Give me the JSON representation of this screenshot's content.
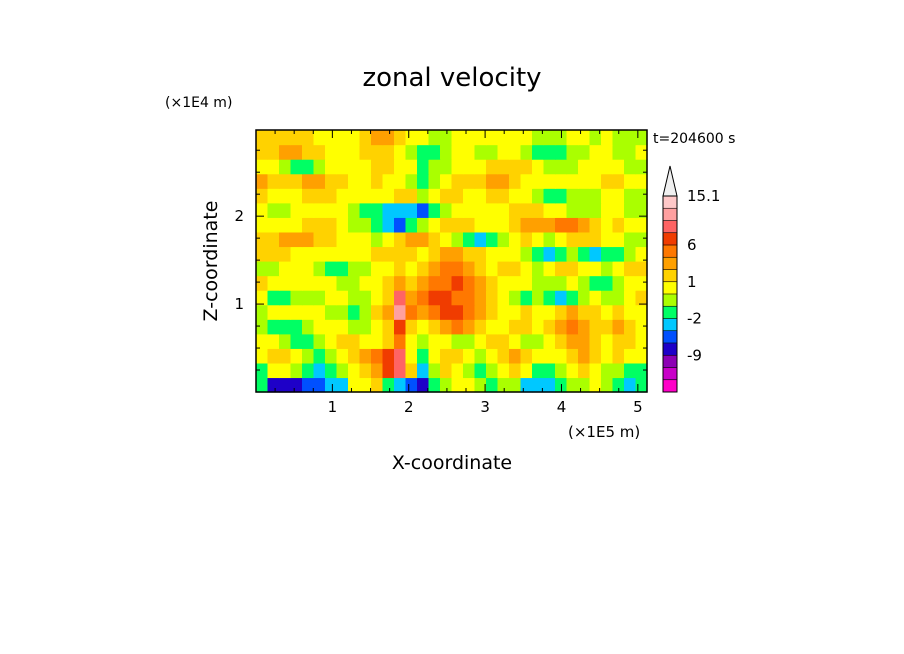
{
  "chart_data": {
    "type": "heatmap",
    "title": "zonal velocity",
    "xlabel": "X-coordinate",
    "ylabel": "Z-coordinate",
    "x_scale_label": "(×1E5 m)",
    "y_scale_label": "(×1E4 m)",
    "time_label": "t=204600 s",
    "xlim": [
      0.0,
      5.12
    ],
    "ylim": [
      0.0,
      2.98
    ],
    "x_ticks": [
      {
        "value": 1,
        "label": "1"
      },
      {
        "value": 2,
        "label": "2"
      },
      {
        "value": 3,
        "label": "3"
      },
      {
        "value": 4,
        "label": "4"
      },
      {
        "value": 5,
        "label": "5"
      }
    ],
    "y_ticks": [
      {
        "value": 1,
        "label": "1"
      },
      {
        "value": 2,
        "label": "2"
      }
    ],
    "colorbar": {
      "colors": [
        "#ff00c8",
        "#c800c8",
        "#8c00b4",
        "#1e00c8",
        "#0050ff",
        "#00c8ff",
        "#00ff64",
        "#aaff00",
        "#ffff00",
        "#ffd200",
        "#ffa000",
        "#ff7800",
        "#f03c00",
        "#ff6464",
        "#ffa0a0",
        "#ffc8c8",
        "#f0f0f0"
      ],
      "labels": [
        {
          "value": "15.1",
          "level": 16
        },
        {
          "value": "6",
          "level": 12
        },
        {
          "value": "1",
          "level": 9
        },
        {
          "value": "-2",
          "level": 6
        },
        {
          "value": "-9",
          "level": 3
        }
      ]
    },
    "field_grid_note": "coarse sampled velocity field, rows from bottom (z=0) to top, columns x from 0 to 5.12",
    "field": [
      [
        6,
        3,
        3,
        3,
        4,
        4,
        5,
        5,
        8,
        8,
        9,
        6,
        5,
        4,
        3,
        6,
        7,
        8,
        8,
        7,
        6,
        7,
        7,
        5,
        5,
        5,
        6,
        7,
        7,
        8,
        7,
        6,
        5,
        6
      ],
      [
        6,
        8,
        8,
        7,
        6,
        5,
        6,
        7,
        8,
        9,
        10,
        12,
        13,
        9,
        5,
        7,
        9,
        8,
        7,
        6,
        7,
        8,
        9,
        8,
        6,
        6,
        7,
        8,
        9,
        8,
        7,
        7,
        6,
        6
      ],
      [
        8,
        9,
        9,
        8,
        7,
        6,
        7,
        8,
        9,
        10,
        11,
        12,
        13,
        8,
        6,
        8,
        9,
        9,
        8,
        7,
        8,
        9,
        10,
        9,
        8,
        8,
        8,
        9,
        10,
        9,
        8,
        9,
        8,
        8
      ],
      [
        8,
        8,
        7,
        6,
        6,
        7,
        8,
        9,
        9,
        8,
        8,
        9,
        11,
        8,
        7,
        8,
        8,
        7,
        7,
        8,
        9,
        9,
        8,
        7,
        7,
        8,
        9,
        10,
        10,
        9,
        8,
        9,
        9,
        8
      ],
      [
        7,
        6,
        6,
        6,
        7,
        8,
        8,
        8,
        7,
        7,
        8,
        9,
        12,
        9,
        8,
        9,
        10,
        11,
        10,
        9,
        8,
        8,
        9,
        9,
        8,
        9,
        10,
        11,
        10,
        9,
        9,
        10,
        9,
        8
      ],
      [
        7,
        8,
        8,
        8,
        8,
        8,
        7,
        7,
        6,
        7,
        9,
        10,
        14,
        11,
        10,
        11,
        12,
        12,
        11,
        10,
        9,
        8,
        8,
        9,
        8,
        8,
        9,
        10,
        9,
        9,
        8,
        9,
        8,
        8
      ],
      [
        8,
        6,
        6,
        7,
        7,
        7,
        8,
        8,
        7,
        7,
        8,
        9,
        13,
        10,
        11,
        12,
        12,
        11,
        11,
        10,
        9,
        8,
        7,
        6,
        7,
        6,
        5,
        6,
        7,
        8,
        7,
        7,
        8,
        9
      ],
      [
        9,
        8,
        8,
        8,
        8,
        8,
        8,
        7,
        7,
        8,
        8,
        9,
        10,
        9,
        10,
        11,
        11,
        12,
        11,
        10,
        9,
        8,
        8,
        8,
        7,
        7,
        7,
        8,
        7,
        6,
        6,
        7,
        8,
        8
      ],
      [
        7,
        7,
        8,
        8,
        8,
        7,
        6,
        6,
        7,
        7,
        8,
        8,
        9,
        8,
        9,
        10,
        11,
        11,
        10,
        9,
        8,
        9,
        9,
        8,
        7,
        8,
        9,
        9,
        8,
        8,
        7,
        8,
        9,
        9
      ],
      [
        9,
        9,
        9,
        8,
        8,
        8,
        8,
        8,
        8,
        8,
        9,
        9,
        9,
        9,
        8,
        9,
        10,
        10,
        9,
        9,
        8,
        8,
        8,
        7,
        6,
        5,
        6,
        7,
        6,
        5,
        6,
        6,
        7,
        8
      ],
      [
        9,
        9,
        10,
        10,
        10,
        9,
        9,
        8,
        8,
        8,
        7,
        8,
        9,
        10,
        10,
        9,
        8,
        7,
        6,
        5,
        6,
        7,
        8,
        9,
        8,
        7,
        8,
        9,
        9,
        9,
        8,
        8,
        7,
        7
      ],
      [
        8,
        8,
        8,
        8,
        9,
        9,
        9,
        8,
        7,
        7,
        6,
        5,
        4,
        6,
        7,
        8,
        9,
        9,
        9,
        8,
        8,
        8,
        9,
        10,
        10,
        10,
        11,
        11,
        10,
        9,
        8,
        9,
        8,
        8
      ],
      [
        8,
        7,
        7,
        8,
        8,
        8,
        8,
        8,
        7,
        6,
        6,
        5,
        5,
        5,
        4,
        6,
        7,
        8,
        8,
        8,
        8,
        8,
        9,
        9,
        9,
        8,
        8,
        7,
        7,
        7,
        8,
        8,
        7,
        7
      ],
      [
        9,
        8,
        8,
        8,
        9,
        9,
        9,
        8,
        8,
        8,
        8,
        8,
        9,
        9,
        7,
        8,
        9,
        9,
        8,
        8,
        9,
        9,
        8,
        8,
        7,
        6,
        6,
        7,
        7,
        7,
        8,
        8,
        7,
        7
      ],
      [
        10,
        9,
        9,
        9,
        10,
        10,
        9,
        9,
        8,
        8,
        9,
        8,
        8,
        7,
        6,
        7,
        8,
        9,
        9,
        9,
        10,
        10,
        9,
        8,
        8,
        8,
        8,
        8,
        8,
        8,
        9,
        9,
        8,
        8
      ],
      [
        8,
        8,
        7,
        6,
        6,
        7,
        8,
        8,
        8,
        8,
        9,
        9,
        8,
        8,
        6,
        7,
        7,
        8,
        8,
        8,
        9,
        9,
        9,
        9,
        8,
        7,
        7,
        7,
        8,
        8,
        8,
        8,
        7,
        7
      ],
      [
        9,
        9,
        10,
        10,
        9,
        9,
        8,
        8,
        8,
        9,
        9,
        9,
        8,
        7,
        6,
        6,
        7,
        8,
        8,
        7,
        7,
        8,
        8,
        7,
        6,
        6,
        6,
        7,
        7,
        8,
        8,
        7,
        7,
        8
      ],
      [
        9,
        9,
        9,
        9,
        9,
        8,
        8,
        8,
        8,
        9,
        10,
        10,
        9,
        8,
        8,
        7,
        7,
        8,
        8,
        8,
        8,
        8,
        8,
        8,
        7,
        7,
        7,
        8,
        8,
        7,
        8,
        7,
        7,
        7
      ]
    ]
  }
}
